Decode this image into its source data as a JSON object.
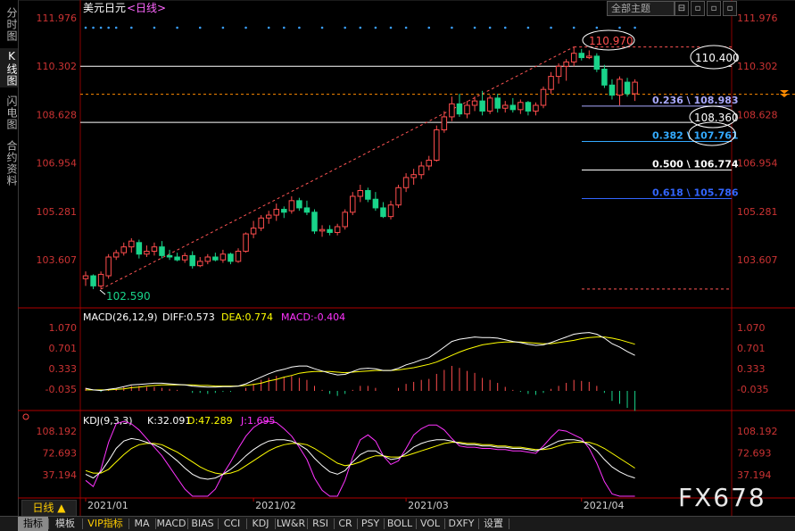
{
  "sidebar": {
    "items": [
      {
        "label": "分时图",
        "active": false
      },
      {
        "label": "K线图",
        "active": true
      },
      {
        "label": "闪电图",
        "active": false
      },
      {
        "label": "合约资料",
        "active": false
      }
    ]
  },
  "header": {
    "symbol": "美元日元",
    "period_tag": "<日线>",
    "theme_select": "全部主题",
    "window_buttons": [
      "⊟",
      "▫",
      "▫",
      "▫",
      "▫"
    ]
  },
  "period_button": "日线 ▲",
  "watermark": "FX678",
  "bottom_tabs": [
    {
      "label": "指标",
      "active": true,
      "vip": false
    },
    {
      "label": "模板",
      "active": false,
      "vip": false
    },
    {
      "label": "VIP指标",
      "active": false,
      "vip": true
    },
    {
      "label": "MA",
      "active": false,
      "vip": false
    },
    {
      "label": "MACD",
      "active": false,
      "vip": false
    },
    {
      "label": "BIAS",
      "active": false,
      "vip": false
    },
    {
      "label": "CCI",
      "active": false,
      "vip": false
    },
    {
      "label": "KDJ",
      "active": false,
      "vip": false
    },
    {
      "label": "LW&R",
      "active": false,
      "vip": false
    },
    {
      "label": "RSI",
      "active": false,
      "vip": false
    },
    {
      "label": "CR",
      "active": false,
      "vip": false
    },
    {
      "label": "PSY",
      "active": false,
      "vip": false
    },
    {
      "label": "BOLL",
      "active": false,
      "vip": false
    },
    {
      "label": "VOL",
      "active": false,
      "vip": false
    },
    {
      "label": "DXFY",
      "active": false,
      "vip": false
    },
    {
      "label": "设置",
      "active": false,
      "vip": false
    }
  ],
  "chart_data": {
    "type": "candlestick",
    "title": "美元日元",
    "period": "日线",
    "price_axis": {
      "ticks": [
        111.976,
        110.302,
        108.628,
        106.954,
        105.281,
        103.607
      ],
      "ylim": [
        101.95,
        112.45
      ]
    },
    "time_axis": {
      "labels": [
        "2021/01",
        "2021/02",
        "2021/03",
        "2021/04"
      ],
      "label_index": [
        0,
        22,
        42,
        65
      ]
    },
    "candles": [
      {
        "o": 102.95,
        "h": 103.2,
        "l": 102.7,
        "c": 103.05
      },
      {
        "o": 103.05,
        "h": 103.1,
        "l": 102.59,
        "c": 102.7
      },
      {
        "o": 102.7,
        "h": 103.2,
        "l": 102.6,
        "c": 103.1
      },
      {
        "o": 103.05,
        "h": 103.8,
        "l": 102.95,
        "c": 103.7
      },
      {
        "o": 103.7,
        "h": 103.95,
        "l": 103.6,
        "c": 103.85
      },
      {
        "o": 103.85,
        "h": 104.2,
        "l": 103.75,
        "c": 104.05
      },
      {
        "o": 104.05,
        "h": 104.35,
        "l": 103.85,
        "c": 104.25
      },
      {
        "o": 104.2,
        "h": 104.3,
        "l": 103.65,
        "c": 103.8
      },
      {
        "o": 103.8,
        "h": 104.1,
        "l": 103.7,
        "c": 103.9
      },
      {
        "o": 103.9,
        "h": 104.2,
        "l": 103.75,
        "c": 104.05
      },
      {
        "o": 104.05,
        "h": 104.25,
        "l": 103.65,
        "c": 103.75
      },
      {
        "o": 103.75,
        "h": 103.95,
        "l": 103.6,
        "c": 103.7
      },
      {
        "o": 103.7,
        "h": 103.85,
        "l": 103.55,
        "c": 103.6
      },
      {
        "o": 103.6,
        "h": 103.85,
        "l": 103.5,
        "c": 103.75
      },
      {
        "o": 103.75,
        "h": 103.9,
        "l": 103.3,
        "c": 103.4
      },
      {
        "o": 103.4,
        "h": 103.7,
        "l": 103.35,
        "c": 103.55
      },
      {
        "o": 103.55,
        "h": 103.8,
        "l": 103.45,
        "c": 103.7
      },
      {
        "o": 103.7,
        "h": 103.85,
        "l": 103.55,
        "c": 103.6
      },
      {
        "o": 103.6,
        "h": 103.95,
        "l": 103.5,
        "c": 103.8
      },
      {
        "o": 103.8,
        "h": 103.85,
        "l": 103.45,
        "c": 103.55
      },
      {
        "o": 103.55,
        "h": 104.0,
        "l": 103.5,
        "c": 103.9
      },
      {
        "o": 103.9,
        "h": 104.55,
        "l": 103.85,
        "c": 104.5
      },
      {
        "o": 104.5,
        "h": 104.95,
        "l": 104.35,
        "c": 104.7
      },
      {
        "o": 104.7,
        "h": 105.15,
        "l": 104.6,
        "c": 105.05
      },
      {
        "o": 105.05,
        "h": 105.3,
        "l": 104.85,
        "c": 105.15
      },
      {
        "o": 105.15,
        "h": 105.55,
        "l": 104.95,
        "c": 105.35
      },
      {
        "o": 105.35,
        "h": 105.45,
        "l": 105.05,
        "c": 105.25
      },
      {
        "o": 105.3,
        "h": 105.8,
        "l": 105.2,
        "c": 105.65
      },
      {
        "o": 105.65,
        "h": 105.75,
        "l": 105.3,
        "c": 105.4
      },
      {
        "o": 105.4,
        "h": 105.65,
        "l": 105.15,
        "c": 105.25
      },
      {
        "o": 105.25,
        "h": 105.35,
        "l": 104.5,
        "c": 104.6
      },
      {
        "o": 104.6,
        "h": 104.8,
        "l": 104.4,
        "c": 104.65
      },
      {
        "o": 104.65,
        "h": 104.8,
        "l": 104.45,
        "c": 104.55
      },
      {
        "o": 104.55,
        "h": 104.85,
        "l": 104.45,
        "c": 104.75
      },
      {
        "o": 104.75,
        "h": 105.35,
        "l": 104.65,
        "c": 105.25
      },
      {
        "o": 105.25,
        "h": 105.95,
        "l": 105.15,
        "c": 105.8
      },
      {
        "o": 105.8,
        "h": 106.2,
        "l": 105.6,
        "c": 106.0
      },
      {
        "o": 106.0,
        "h": 106.1,
        "l": 105.6,
        "c": 105.7
      },
      {
        "o": 105.7,
        "h": 105.95,
        "l": 105.3,
        "c": 105.4
      },
      {
        "o": 105.4,
        "h": 105.6,
        "l": 105.05,
        "c": 105.1
      },
      {
        "o": 105.1,
        "h": 105.65,
        "l": 105.0,
        "c": 105.5
      },
      {
        "o": 105.5,
        "h": 106.2,
        "l": 105.4,
        "c": 106.1
      },
      {
        "o": 106.1,
        "h": 106.6,
        "l": 105.95,
        "c": 106.45
      },
      {
        "o": 106.45,
        "h": 106.75,
        "l": 106.2,
        "c": 106.55
      },
      {
        "o": 106.55,
        "h": 107.0,
        "l": 106.4,
        "c": 106.85
      },
      {
        "o": 106.85,
        "h": 107.2,
        "l": 106.7,
        "c": 107.05
      },
      {
        "o": 107.05,
        "h": 108.25,
        "l": 107.0,
        "c": 108.1
      },
      {
        "o": 108.1,
        "h": 108.75,
        "l": 108.0,
        "c": 108.55
      },
      {
        "o": 108.55,
        "h": 109.25,
        "l": 108.4,
        "c": 109.0
      },
      {
        "o": 109.0,
        "h": 109.35,
        "l": 108.55,
        "c": 108.65
      },
      {
        "o": 108.65,
        "h": 109.1,
        "l": 108.5,
        "c": 108.95
      },
      {
        "o": 108.95,
        "h": 109.25,
        "l": 108.75,
        "c": 109.1
      },
      {
        "o": 109.1,
        "h": 109.45,
        "l": 108.6,
        "c": 108.75
      },
      {
        "o": 108.75,
        "h": 109.3,
        "l": 108.65,
        "c": 109.2
      },
      {
        "o": 109.2,
        "h": 109.35,
        "l": 108.7,
        "c": 108.85
      },
      {
        "o": 108.85,
        "h": 109.1,
        "l": 108.7,
        "c": 108.95
      },
      {
        "o": 108.95,
        "h": 109.2,
        "l": 108.7,
        "c": 108.8
      },
      {
        "o": 108.8,
        "h": 109.15,
        "l": 108.65,
        "c": 109.05
      },
      {
        "o": 109.05,
        "h": 109.1,
        "l": 108.6,
        "c": 108.75
      },
      {
        "o": 108.75,
        "h": 109.05,
        "l": 108.6,
        "c": 108.95
      },
      {
        "o": 108.95,
        "h": 109.6,
        "l": 108.85,
        "c": 109.5
      },
      {
        "o": 109.5,
        "h": 110.1,
        "l": 109.35,
        "c": 109.95
      },
      {
        "o": 109.95,
        "h": 110.4,
        "l": 109.7,
        "c": 110.3
      },
      {
        "o": 110.3,
        "h": 110.55,
        "l": 109.8,
        "c": 110.45
      },
      {
        "o": 110.45,
        "h": 110.97,
        "l": 110.3,
        "c": 110.75
      },
      {
        "o": 110.75,
        "h": 110.9,
        "l": 110.5,
        "c": 110.6
      },
      {
        "o": 110.6,
        "h": 110.85,
        "l": 110.55,
        "c": 110.65
      },
      {
        "o": 110.65,
        "h": 110.75,
        "l": 110.1,
        "c": 110.2
      },
      {
        "o": 110.2,
        "h": 110.35,
        "l": 109.55,
        "c": 109.65
      },
      {
        "o": 109.65,
        "h": 109.85,
        "l": 109.15,
        "c": 109.3
      },
      {
        "o": 109.3,
        "h": 109.95,
        "l": 108.95,
        "c": 109.85
      },
      {
        "o": 109.75,
        "h": 109.9,
        "l": 109.25,
        "c": 109.35
      },
      {
        "o": 109.35,
        "h": 109.85,
        "l": 109.1,
        "c": 109.75
      }
    ],
    "horizontal_lines": [
      {
        "value": 110.302,
        "color": "#ffffff"
      },
      {
        "value": 108.36,
        "color": "#ffffff"
      },
      {
        "value": 109.33,
        "color": "#ff8a00"
      }
    ],
    "labels": {
      "high": "110.970",
      "low": "102.590",
      "box1": "110.400",
      "box2": "108.360"
    },
    "fibonacci": [
      {
        "text": "0.236 \\ 108.983",
        "value": 108.983,
        "color": "#aaaaff"
      },
      {
        "text": "0.382 \\ 107.761",
        "value": 107.761,
        "color": "#33aaff"
      },
      {
        "text": "0.500 \\ 106.774",
        "value": 106.774,
        "color": "#ffffff"
      },
      {
        "text": "0.618 \\ 105.786",
        "value": 105.786,
        "color": "#3366ff"
      }
    ],
    "macd": {
      "header": "MACD(26,12,9)",
      "diff_label": "DIFF:0.573",
      "dea_label": "DEA:0.774",
      "macd_label": "MACD:-0.404",
      "ticks": [
        1.07,
        0.701,
        0.333,
        -0.035
      ],
      "tick_labels": [
        "1.070",
        "0.701",
        "0.333",
        "-0.035"
      ],
      "ylim": [
        -0.3,
        1.16
      ],
      "diff": [
        -0.02,
        -0.05,
        -0.06,
        -0.04,
        -0.02,
        0.01,
        0.04,
        0.05,
        0.06,
        0.07,
        0.07,
        0.06,
        0.05,
        0.04,
        0.02,
        0.01,
        0.0,
        0.0,
        0.01,
        0.01,
        0.02,
        0.06,
        0.12,
        0.18,
        0.24,
        0.29,
        0.32,
        0.36,
        0.38,
        0.38,
        0.33,
        0.29,
        0.25,
        0.22,
        0.23,
        0.28,
        0.33,
        0.34,
        0.33,
        0.3,
        0.3,
        0.34,
        0.4,
        0.44,
        0.49,
        0.53,
        0.62,
        0.72,
        0.82,
        0.86,
        0.88,
        0.9,
        0.89,
        0.89,
        0.88,
        0.85,
        0.82,
        0.8,
        0.77,
        0.75,
        0.76,
        0.8,
        0.85,
        0.9,
        0.95,
        0.97,
        0.98,
        0.95,
        0.88,
        0.78,
        0.72,
        0.64,
        0.57
      ],
      "dea": [
        -0.05,
        -0.05,
        -0.05,
        -0.05,
        -0.04,
        -0.03,
        -0.01,
        0.0,
        0.02,
        0.03,
        0.04,
        0.04,
        0.04,
        0.04,
        0.04,
        0.03,
        0.03,
        0.02,
        0.02,
        0.02,
        0.02,
        0.03,
        0.05,
        0.07,
        0.11,
        0.14,
        0.18,
        0.21,
        0.25,
        0.27,
        0.28,
        0.28,
        0.28,
        0.27,
        0.26,
        0.27,
        0.28,
        0.29,
        0.3,
        0.3,
        0.3,
        0.31,
        0.33,
        0.35,
        0.38,
        0.41,
        0.45,
        0.51,
        0.57,
        0.63,
        0.68,
        0.72,
        0.76,
        0.78,
        0.8,
        0.81,
        0.81,
        0.81,
        0.8,
        0.79,
        0.78,
        0.78,
        0.8,
        0.82,
        0.84,
        0.87,
        0.89,
        0.9,
        0.9,
        0.88,
        0.85,
        0.81,
        0.77
      ],
      "hist": [
        0.06,
        0.0,
        -0.02,
        0.02,
        0.04,
        0.08,
        0.1,
        0.1,
        0.08,
        0.08,
        0.06,
        0.04,
        0.02,
        0.0,
        -0.04,
        -0.04,
        -0.06,
        -0.04,
        -0.02,
        -0.02,
        0.0,
        0.06,
        0.14,
        0.22,
        0.26,
        0.3,
        0.28,
        0.3,
        0.26,
        0.22,
        0.1,
        0.02,
        -0.06,
        -0.1,
        -0.06,
        0.02,
        0.1,
        0.1,
        0.06,
        0.0,
        0.0,
        0.06,
        0.14,
        0.18,
        0.22,
        0.24,
        0.34,
        0.42,
        0.5,
        0.46,
        0.4,
        0.36,
        0.26,
        0.22,
        0.16,
        0.08,
        0.02,
        -0.02,
        -0.06,
        -0.08,
        -0.04,
        0.04,
        0.1,
        0.16,
        0.22,
        0.2,
        0.18,
        0.1,
        -0.04,
        -0.2,
        -0.26,
        -0.34,
        -0.4
      ]
    },
    "kdj": {
      "header": "KDJ(9,3,3)",
      "k_label": "K:32.091",
      "d_label": "D:47.289",
      "j_label": "J:1.695",
      "ticks": [
        108.192,
        72.693,
        37.194
      ],
      "tick_labels": [
        "108.192",
        "72.693",
        "37.194"
      ],
      "ylim": [
        -5,
        130
      ],
      "k": [
        38,
        32,
        42,
        60,
        80,
        92,
        96,
        94,
        90,
        86,
        80,
        70,
        60,
        48,
        38,
        32,
        30,
        32,
        38,
        46,
        56,
        68,
        78,
        86,
        92,
        94,
        94,
        92,
        86,
        78,
        64,
        52,
        42,
        38,
        44,
        58,
        70,
        76,
        76,
        68,
        62,
        64,
        72,
        82,
        88,
        92,
        94,
        94,
        92,
        88,
        86,
        86,
        84,
        84,
        82,
        82,
        80,
        80,
        78,
        76,
        80,
        86,
        92,
        94,
        94,
        92,
        86,
        76,
        62,
        50,
        42,
        36,
        32
      ],
      "d": [
        44,
        40,
        40,
        46,
        58,
        70,
        80,
        86,
        88,
        88,
        86,
        80,
        74,
        66,
        58,
        50,
        44,
        40,
        38,
        40,
        44,
        52,
        60,
        68,
        76,
        82,
        86,
        88,
        88,
        86,
        80,
        72,
        64,
        56,
        52,
        54,
        58,
        64,
        68,
        68,
        66,
        66,
        68,
        72,
        76,
        80,
        84,
        88,
        90,
        90,
        88,
        88,
        86,
        86,
        84,
        84,
        82,
        82,
        80,
        78,
        78,
        80,
        84,
        88,
        90,
        90,
        90,
        86,
        80,
        72,
        64,
        56,
        48
      ],
      "j": [
        28,
        18,
        46,
        90,
        120,
        124,
        120,
        110,
        96,
        82,
        68,
        50,
        32,
        14,
        0,
        -4,
        2,
        14,
        38,
        58,
        80,
        100,
        114,
        122,
        124,
        122,
        112,
        100,
        82,
        62,
        32,
        12,
        -2,
        2,
        28,
        66,
        94,
        102,
        92,
        68,
        54,
        60,
        80,
        102,
        112,
        118,
        118,
        110,
        96,
        84,
        82,
        82,
        80,
        80,
        78,
        78,
        76,
        76,
        74,
        72,
        84,
        98,
        110,
        108,
        102,
        96,
        80,
        56,
        26,
        6,
        -4,
        -4,
        0
      ]
    }
  }
}
